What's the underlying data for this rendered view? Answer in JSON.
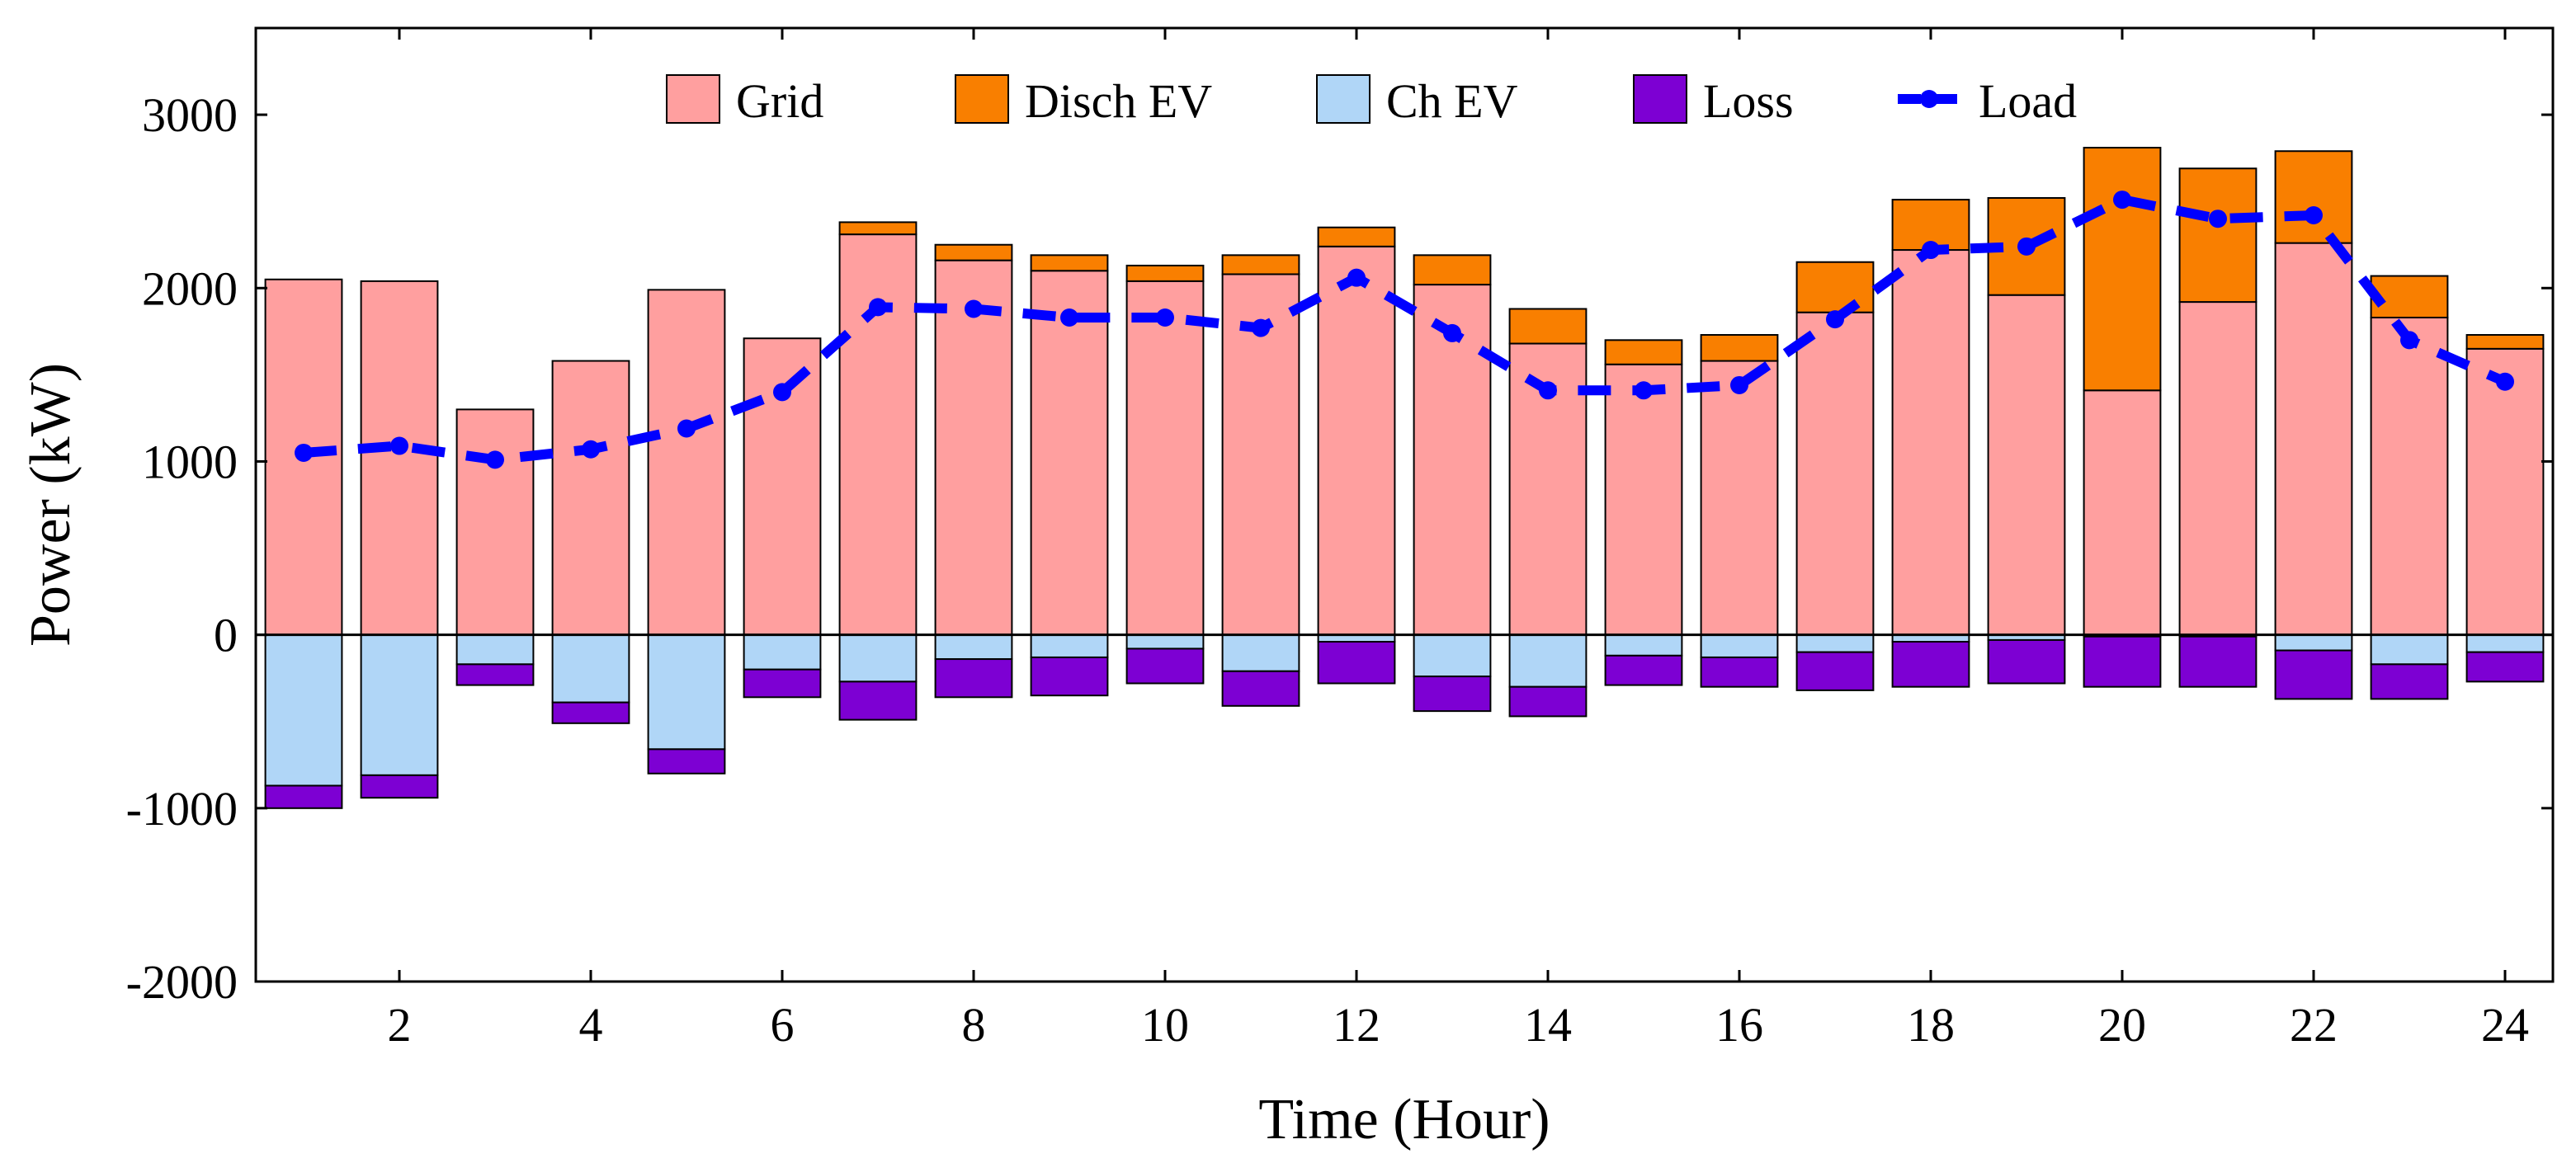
{
  "chart_data": {
    "type": "bar",
    "stacked": true,
    "title": "",
    "xlabel": "Time (Hour)",
    "ylabel": "Power (kW)",
    "ylim": [
      -2000,
      3500
    ],
    "xlim": [
      0.5,
      24.5
    ],
    "yticks": [
      -2000,
      -1000,
      0,
      1000,
      2000,
      3000
    ],
    "xticks": [
      2,
      4,
      6,
      8,
      10,
      12,
      14,
      16,
      18,
      20,
      22,
      24
    ],
    "legend_position": "top",
    "categories": [
      1,
      2,
      3,
      4,
      5,
      6,
      7,
      8,
      9,
      10,
      11,
      12,
      13,
      14,
      15,
      16,
      17,
      18,
      19,
      20,
      21,
      22,
      23,
      24
    ],
    "series": [
      {
        "name": "Grid",
        "kind": "bar",
        "color": "#ff9f9f",
        "values": [
          2050,
          2040,
          1300,
          1580,
          1990,
          1710,
          2310,
          2160,
          2100,
          2040,
          2080,
          2240,
          2020,
          1680,
          1560,
          1580,
          1860,
          2220,
          1960,
          1410,
          1920,
          2260,
          1830,
          1650
        ]
      },
      {
        "name": "Disch EV",
        "kind": "bar",
        "color": "#f97f00",
        "values": [
          0,
          0,
          0,
          0,
          0,
          0,
          70,
          90,
          90,
          90,
          110,
          110,
          170,
          200,
          140,
          150,
          290,
          290,
          560,
          1400,
          770,
          530,
          240,
          80
        ]
      },
      {
        "name": "Ch EV",
        "kind": "bar",
        "color": "#b0d6f7",
        "values": [
          -870,
          -810,
          -170,
          -390,
          -660,
          -200,
          -270,
          -140,
          -130,
          -80,
          -210,
          -40,
          -240,
          -300,
          -120,
          -130,
          -100,
          -40,
          -30,
          -10,
          -10,
          -90,
          -170,
          -100
        ]
      },
      {
        "name": "Loss",
        "kind": "bar",
        "color": "#7d00d3",
        "values": [
          -130,
          -130,
          -120,
          -120,
          -140,
          -160,
          -220,
          -220,
          -220,
          -200,
          -200,
          -240,
          -200,
          -170,
          -170,
          -170,
          -220,
          -260,
          -250,
          -290,
          -290,
          -280,
          -200,
          -170
        ]
      },
      {
        "name": "Load",
        "kind": "line",
        "color": "#0000ff",
        "style": "dashed",
        "marker": "circle",
        "values": [
          1050,
          1090,
          1010,
          1070,
          1190,
          1400,
          1890,
          1880,
          1830,
          1830,
          1770,
          2060,
          1740,
          1410,
          1410,
          1440,
          1820,
          2220,
          2240,
          2510,
          2400,
          2420,
          1700,
          1460
        ]
      }
    ]
  }
}
